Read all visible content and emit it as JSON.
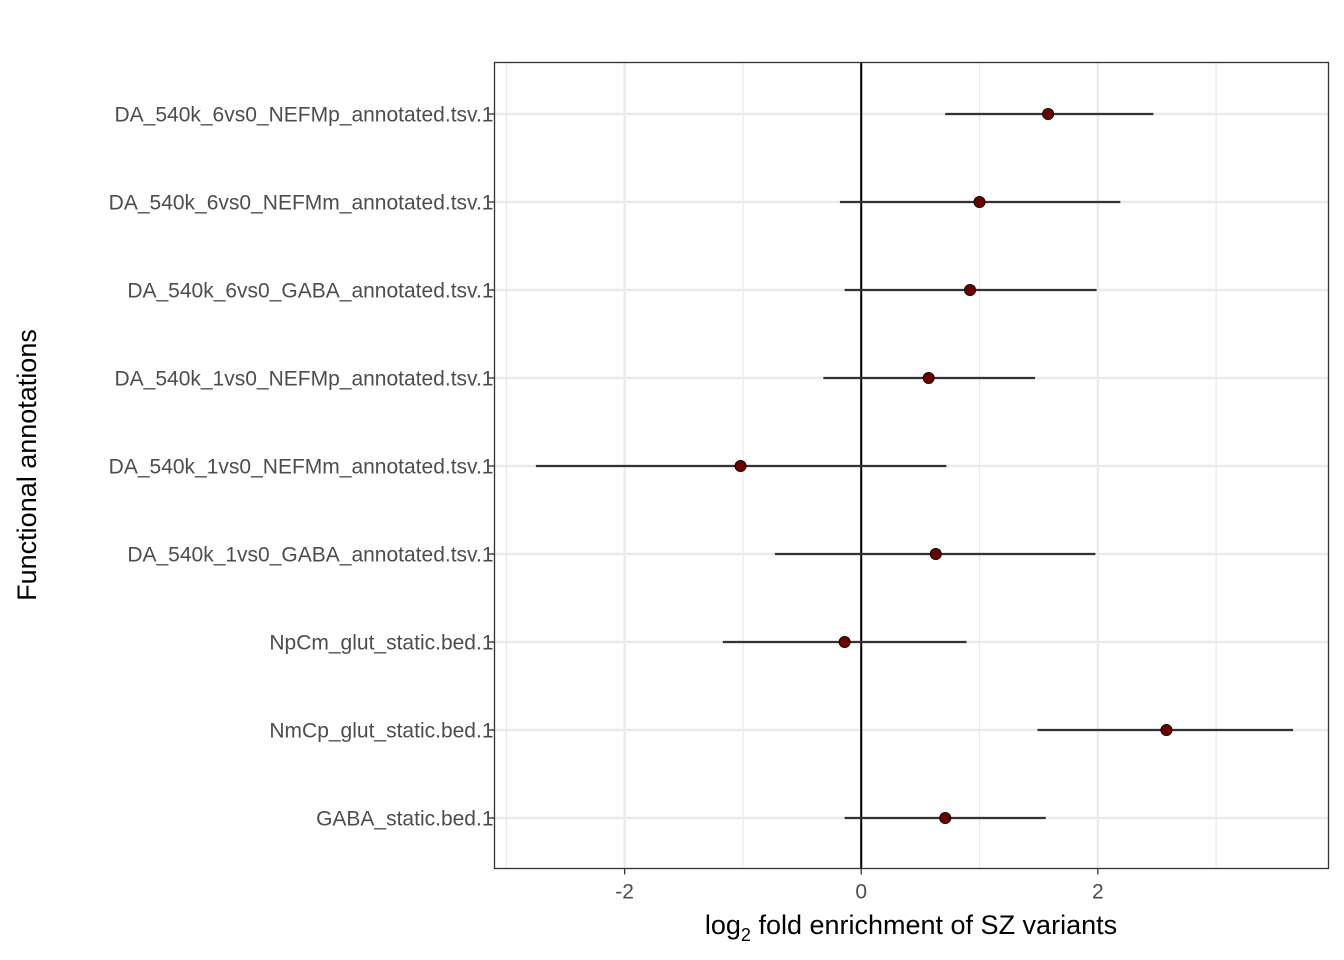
{
  "chart_data": {
    "type": "scatter",
    "subtype": "forest-plot",
    "title": "",
    "xlabel": {
      "prefix": "log",
      "subscript": "2",
      "suffix": " fold enrichment of SZ variants"
    },
    "ylabel": "Functional annotations",
    "xlim": [
      -3.1,
      3.95
    ],
    "xticks": [
      -2,
      0,
      2
    ],
    "xtick_labels": [
      "-2",
      "0",
      "2"
    ],
    "reference_line_x": 0,
    "grid": true,
    "legend": "none",
    "point_color": "#6b0000",
    "errorbar_color": "#333333",
    "categories": [
      "DA_540k_6vs0_NEFMp_annotated.tsv.1",
      "DA_540k_6vs0_NEFMm_annotated.tsv.1",
      "DA_540k_6vs0_GABA_annotated.tsv.1",
      "DA_540k_1vs0_NEFMp_annotated.tsv.1",
      "DA_540k_1vs0_NEFMm_annotated.tsv.1",
      "DA_540k_1vs0_GABA_annotated.tsv.1",
      "NpCm_glut_static.bed.1",
      "NmCp_glut_static.bed.1",
      "GABA_static.bed.1"
    ],
    "estimate": [
      1.58,
      1.0,
      0.92,
      0.57,
      -1.02,
      0.63,
      -0.14,
      2.58,
      0.71
    ],
    "ci_low": [
      0.71,
      -0.18,
      -0.14,
      -0.32,
      -2.75,
      -0.73,
      -1.17,
      1.49,
      -0.14
    ],
    "ci_high": [
      2.47,
      2.19,
      1.99,
      1.47,
      0.72,
      1.98,
      0.89,
      3.65,
      1.56
    ]
  }
}
